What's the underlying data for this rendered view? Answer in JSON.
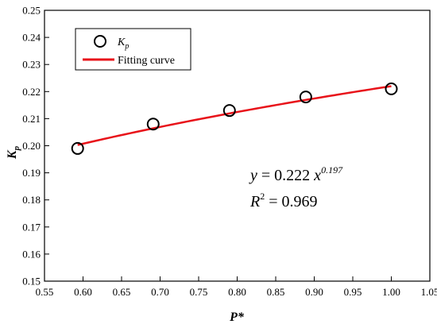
{
  "chart_data": {
    "type": "scatter",
    "xlabel": "P*",
    "ylabel": "K",
    "ylabel_sub": "p",
    "xlim": [
      0.55,
      1.05
    ],
    "ylim": [
      0.15,
      0.25
    ],
    "x_ticks": [
      0.55,
      0.6,
      0.65,
      0.7,
      0.75,
      0.8,
      0.85,
      0.9,
      0.95,
      1.0,
      1.05
    ],
    "y_ticks": [
      0.15,
      0.16,
      0.17,
      0.18,
      0.19,
      0.2,
      0.21,
      0.22,
      0.23,
      0.24,
      0.25
    ],
    "x_tick_labels": [
      "0.55",
      "0.60",
      "0.65",
      "0.70",
      "0.75",
      "0.80",
      "0.85",
      "0.90",
      "0.95",
      "1.00",
      "1.05"
    ],
    "y_tick_labels": [
      "0.15",
      "0.16",
      "0.17",
      "0.18",
      "0.19",
      "0.20",
      "0.21",
      "0.22",
      "0.23",
      "0.24",
      "0.25"
    ],
    "series": [
      {
        "name": "K",
        "name_sub": "p",
        "kind": "markers",
        "marker": "open-circle",
        "color": "#000000",
        "x": [
          0.593,
          0.691,
          0.79,
          0.889,
          1.0
        ],
        "y": [
          0.199,
          0.208,
          0.213,
          0.218,
          0.221
        ]
      },
      {
        "name": "Fitting curve",
        "kind": "line",
        "color": "#e8131a",
        "model": {
          "a": 0.222,
          "b": 0.197
        },
        "x_range": [
          0.593,
          1.0
        ]
      }
    ],
    "annotations": {
      "eq_y": "y",
      "eq_equals": " = 0.222 ",
      "eq_x": "x",
      "eq_exp": "0.197",
      "r2_r": "R",
      "r2_sup": "2",
      "r2_rest": " = 0.969"
    },
    "legend_position": "top-left",
    "grid": false
  }
}
